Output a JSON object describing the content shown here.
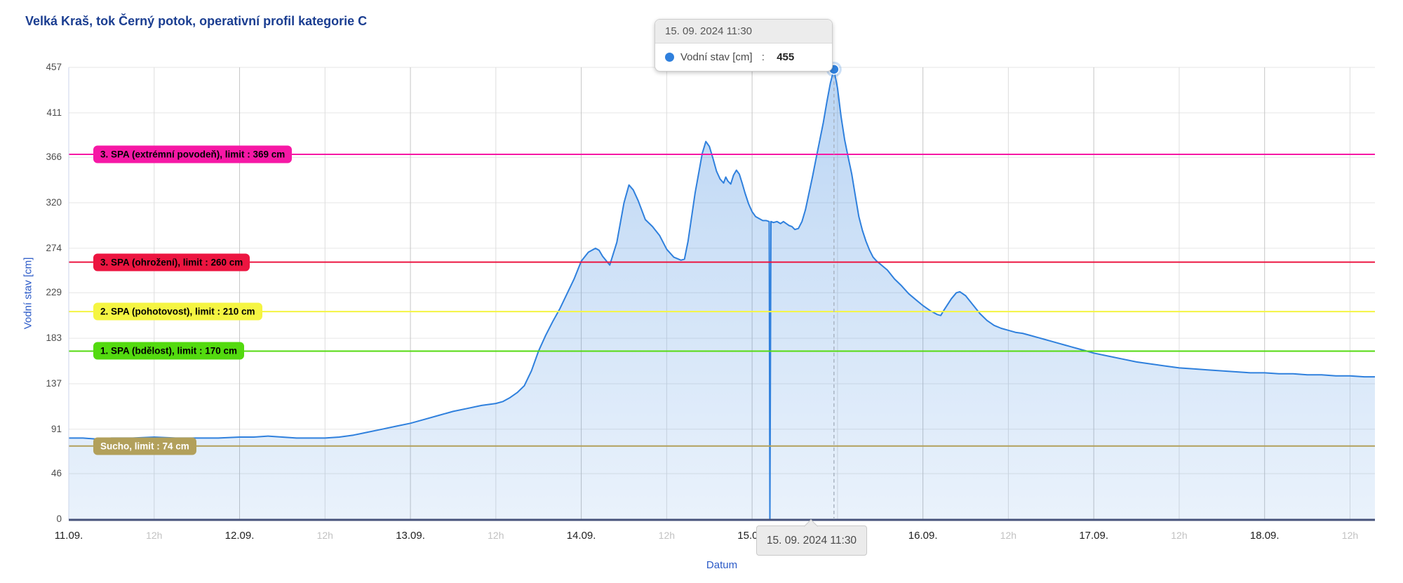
{
  "title": "Velká Kraš, tok Černý potok, operativní profil kategorie C",
  "tooltip": {
    "header": "15. 09. 2024 11:30",
    "series_label": "Vodní stav [cm]",
    "separator": " :  ",
    "value": "455",
    "marker_color": "#2f80dd"
  },
  "crosshair": {
    "axis_label": "15. 09. 2024 11:30"
  },
  "colors": {
    "title": "#1b3e91",
    "series_line": "#2f80dd",
    "area_top": "rgba(47,128,221,0.33)",
    "area_bottom": "rgba(47,128,221,0.10)",
    "x_axis_line": "#46527a",
    "y_axis_line": "#ccd6eb",
    "grid_horizontal": "#e6e6e6",
    "grid_vertical_major": "#c6c6c6",
    "grid_vertical_minor": "#dedede",
    "crosshair_dash": "#a9b4c2"
  },
  "chart_data": {
    "type": "area",
    "title": "Velká Kraš, tok Černý potok, operativní profil kategorie C",
    "xlabel": "Datum",
    "ylabel": "Vodní stav [cm]",
    "ylim": [
      0,
      457
    ],
    "y_ticks": [
      0,
      46,
      91,
      137,
      183,
      229,
      274,
      320,
      366,
      411,
      457
    ],
    "x_total_hours": 183.5,
    "x_ticks": [
      {
        "t": 0,
        "label": "11.09.",
        "major": true
      },
      {
        "t": 12,
        "label": "12h",
        "major": false
      },
      {
        "t": 24,
        "label": "12.09.",
        "major": true
      },
      {
        "t": 36,
        "label": "12h",
        "major": false
      },
      {
        "t": 48,
        "label": "13.09.",
        "major": true
      },
      {
        "t": 60,
        "label": "12h",
        "major": false
      },
      {
        "t": 72,
        "label": "14.09.",
        "major": true
      },
      {
        "t": 84,
        "label": "12h",
        "major": false
      },
      {
        "t": 96,
        "label": "15.09.",
        "major": true
      },
      {
        "t": 108,
        "label": "12h",
        "major": false
      },
      {
        "t": 120,
        "label": "16.09.",
        "major": true
      },
      {
        "t": 132,
        "label": "12h",
        "major": false
      },
      {
        "t": 144,
        "label": "17.09.",
        "major": true
      },
      {
        "t": 156,
        "label": "12h",
        "major": false
      },
      {
        "t": 168,
        "label": "18.09.",
        "major": true
      },
      {
        "t": 180,
        "label": "12h",
        "major": false
      }
    ],
    "thresholds": [
      {
        "label": "3. SPA (extrémní povodeň), limit : 369 cm",
        "value": 369,
        "color": "#f618a5",
        "text_color": "#000000"
      },
      {
        "label": "3. SPA (ohrožení), limit : 260 cm",
        "value": 260,
        "color": "#ec1540",
        "text_color": "#000000"
      },
      {
        "label": "2. SPA (pohotovost), limit : 210 cm",
        "value": 210,
        "color": "#f5f542",
        "text_color": "#000000"
      },
      {
        "label": "1. SPA (bdělost), limit : 170 cm",
        "value": 170,
        "color": "#53da0f",
        "text_color": "#000000"
      },
      {
        "label": "Sucho, limit : 74 cm",
        "value": 74,
        "color": "#b2a05b",
        "text_color": "#ffffff"
      }
    ],
    "highlight": {
      "t": 107.5,
      "value": 455,
      "datetime": "15. 09. 2024 11:30"
    },
    "series": [
      {
        "name": "Vodní stav [cm]",
        "color": "#2f80dd",
        "points": [
          [
            0,
            82
          ],
          [
            2,
            82
          ],
          [
            4,
            81
          ],
          [
            6,
            82
          ],
          [
            9,
            82
          ],
          [
            12,
            83
          ],
          [
            15,
            82
          ],
          [
            18,
            82
          ],
          [
            21,
            82
          ],
          [
            24,
            83
          ],
          [
            26,
            83
          ],
          [
            28,
            84
          ],
          [
            30,
            83
          ],
          [
            32,
            82
          ],
          [
            34,
            82
          ],
          [
            36,
            82
          ],
          [
            38,
            83
          ],
          [
            40,
            85
          ],
          [
            42,
            88
          ],
          [
            44,
            91
          ],
          [
            46,
            94
          ],
          [
            48,
            97
          ],
          [
            50,
            101
          ],
          [
            52,
            105
          ],
          [
            54,
            109
          ],
          [
            56,
            112
          ],
          [
            58,
            115
          ],
          [
            60,
            117
          ],
          [
            61,
            119
          ],
          [
            62,
            123
          ],
          [
            63,
            128
          ],
          [
            64,
            135
          ],
          [
            65,
            150
          ],
          [
            66,
            170
          ],
          [
            67,
            186
          ],
          [
            68,
            200
          ],
          [
            69,
            213
          ],
          [
            70,
            228
          ],
          [
            71,
            243
          ],
          [
            72,
            261
          ],
          [
            73,
            270
          ],
          [
            74,
            274
          ],
          [
            74.5,
            272
          ],
          [
            75,
            266
          ],
          [
            76,
            257
          ],
          [
            77,
            280
          ],
          [
            78,
            320
          ],
          [
            78.7,
            338
          ],
          [
            79.3,
            333
          ],
          [
            80,
            322
          ],
          [
            81,
            303
          ],
          [
            82,
            296
          ],
          [
            83,
            287
          ],
          [
            84,
            273
          ],
          [
            85,
            265
          ],
          [
            86,
            262
          ],
          [
            86.5,
            263
          ],
          [
            87,
            281
          ],
          [
            88,
            330
          ],
          [
            89,
            370
          ],
          [
            89.5,
            382
          ],
          [
            90,
            377
          ],
          [
            90.5,
            365
          ],
          [
            91,
            352
          ],
          [
            91.5,
            344
          ],
          [
            92,
            340
          ],
          [
            92.3,
            346
          ],
          [
            92.6,
            342
          ],
          [
            93,
            339
          ],
          [
            93.4,
            348
          ],
          [
            93.8,
            353
          ],
          [
            94.2,
            349
          ],
          [
            94.6,
            340
          ],
          [
            95,
            330
          ],
          [
            95.5,
            319
          ],
          [
            96,
            311
          ],
          [
            96.5,
            306
          ],
          [
            97,
            304
          ],
          [
            97.5,
            302
          ],
          [
            98,
            302
          ],
          [
            98.4,
            301
          ],
          [
            98.5,
            0
          ],
          [
            98.65,
            301
          ],
          [
            99,
            300
          ],
          [
            99.5,
            301
          ],
          [
            100,
            299
          ],
          [
            100.4,
            301
          ],
          [
            100.8,
            299
          ],
          [
            101.2,
            297
          ],
          [
            101.6,
            296
          ],
          [
            102,
            293
          ],
          [
            102.5,
            294
          ],
          [
            103,
            301
          ],
          [
            103.5,
            313
          ],
          [
            104,
            330
          ],
          [
            104.5,
            347
          ],
          [
            105,
            365
          ],
          [
            105.5,
            383
          ],
          [
            106,
            401
          ],
          [
            106.5,
            422
          ],
          [
            107,
            441
          ],
          [
            107.5,
            455
          ],
          [
            108,
            436
          ],
          [
            108.5,
            407
          ],
          [
            109,
            384
          ],
          [
            109.5,
            366
          ],
          [
            110,
            349
          ],
          [
            110.5,
            327
          ],
          [
            111,
            306
          ],
          [
            111.5,
            292
          ],
          [
            112,
            281
          ],
          [
            112.5,
            272
          ],
          [
            113,
            265
          ],
          [
            113.5,
            261
          ],
          [
            114,
            258
          ],
          [
            115,
            252
          ],
          [
            116,
            243
          ],
          [
            117,
            236
          ],
          [
            118,
            228
          ],
          [
            119,
            222
          ],
          [
            120,
            216
          ],
          [
            121,
            211
          ],
          [
            122,
            207
          ],
          [
            122.5,
            206
          ],
          [
            123,
            212
          ],
          [
            124,
            223
          ],
          [
            124.7,
            229
          ],
          [
            125.2,
            230
          ],
          [
            126,
            226
          ],
          [
            127,
            217
          ],
          [
            128,
            208
          ],
          [
            129,
            201
          ],
          [
            130,
            196
          ],
          [
            131,
            193
          ],
          [
            132,
            191
          ],
          [
            133,
            189
          ],
          [
            134,
            188
          ],
          [
            135,
            186
          ],
          [
            136,
            184
          ],
          [
            137,
            182
          ],
          [
            138,
            180
          ],
          [
            139,
            178
          ],
          [
            140,
            176
          ],
          [
            141,
            174
          ],
          [
            142,
            172
          ],
          [
            143,
            170
          ],
          [
            144,
            168
          ],
          [
            146,
            165
          ],
          [
            148,
            162
          ],
          [
            150,
            159
          ],
          [
            152,
            157
          ],
          [
            154,
            155
          ],
          [
            156,
            153
          ],
          [
            158,
            152
          ],
          [
            160,
            151
          ],
          [
            162,
            150
          ],
          [
            164,
            149
          ],
          [
            166,
            148
          ],
          [
            168,
            148
          ],
          [
            170,
            147
          ],
          [
            172,
            147
          ],
          [
            174,
            146
          ],
          [
            176,
            146
          ],
          [
            178,
            145
          ],
          [
            180,
            145
          ],
          [
            182,
            144
          ],
          [
            183.5,
            144
          ]
        ]
      }
    ]
  }
}
